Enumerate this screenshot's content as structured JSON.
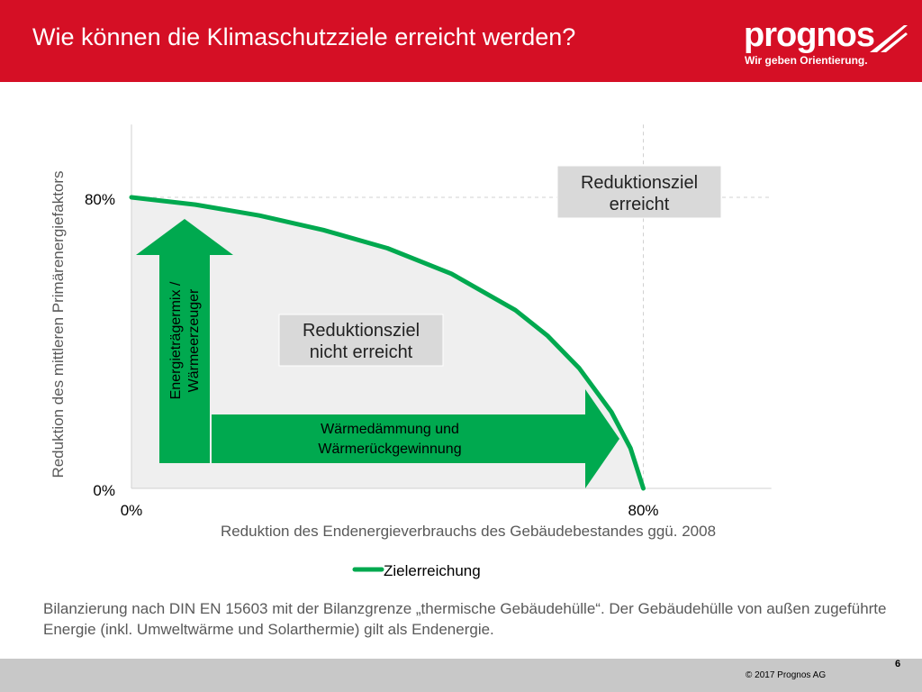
{
  "header": {
    "title": "Wie können die Klimaschutzziele erreicht werden?",
    "logo_text": "prognos",
    "logo_tagline": "Wir geben Orientierung."
  },
  "colors": {
    "header_bg": "#d50f25",
    "curve": "#00a94f",
    "arrow": "#00a94f",
    "area": "#efefef",
    "label_box": "#d9d9d9"
  },
  "chart_data": {
    "type": "line",
    "xlabel": "Reduktion des Endenergieverbrauchs des Gebäudebestandes ggü. 2008",
    "ylabel": "Reduktion des mittleren Primärenergiefaktors",
    "x_ticks": [
      "0%",
      "80%"
    ],
    "y_ticks": [
      "0%",
      "80%"
    ],
    "xlim": [
      0,
      100
    ],
    "ylim": [
      0,
      100
    ],
    "grid": false,
    "legend_position": "bottom",
    "series": [
      {
        "name": "Zielerreichung",
        "x": [
          0,
          10,
          20,
          30,
          40,
          50,
          60,
          65,
          70,
          75,
          78,
          80
        ],
        "y": [
          80,
          78,
          75,
          71,
          66,
          59,
          49,
          42,
          33,
          21,
          11,
          0
        ]
      }
    ],
    "reference_lines": {
      "x": 80,
      "y": 80
    },
    "annotations": {
      "goal_reached": "Reduktionsziel erreicht",
      "goal_not_reached": "Reduktionsziel nicht erreicht",
      "vertical_arrow": "Energieträgermix / Wärmeerzeuger",
      "horizontal_arrow": "Wärmedämmung und Wärmerückgewinnung"
    }
  },
  "note": "Bilanzierung nach DIN EN 15603 mit der Bilanzgrenze „thermische Gebäudehülle“. Der Gebäudehülle von außen zugeführte Energie (inkl. Umweltwärme und Solarthermie) gilt als Endenergie.",
  "footer": {
    "page_number": "6",
    "copyright": "© 2017 Prognos AG"
  }
}
